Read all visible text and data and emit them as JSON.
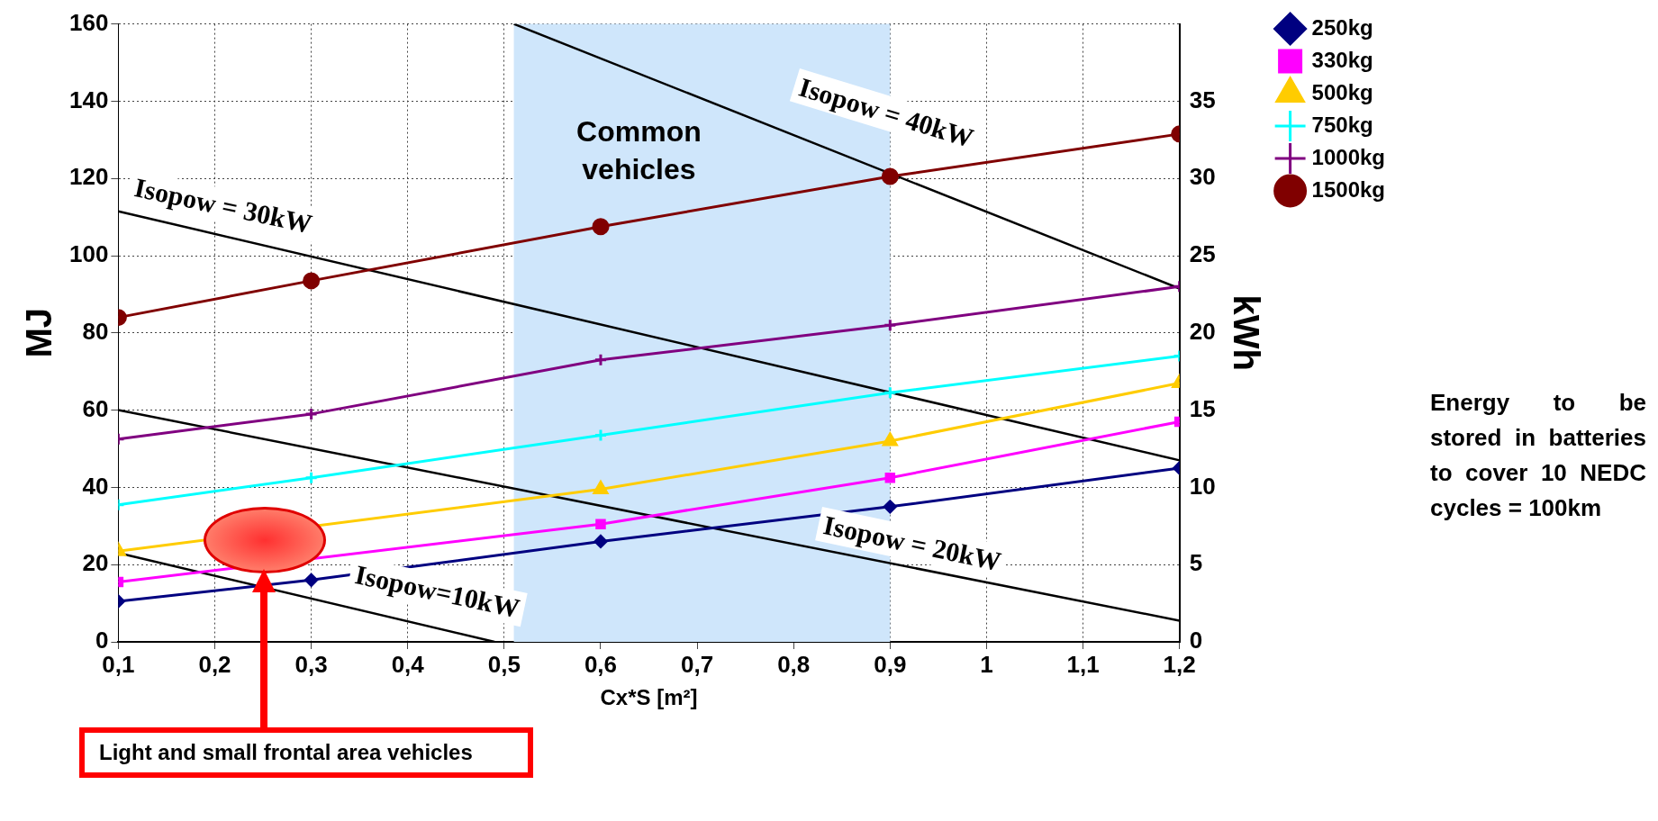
{
  "chart_data": {
    "type": "line",
    "xlabel": "Cx*S [m²]",
    "ylabel": "MJ",
    "y2label": "kWh",
    "xlim": [
      0.1,
      1.2
    ],
    "xticks": [
      {
        "value": 0.1,
        "label": "0,1"
      },
      {
        "value": 0.2,
        "label": "0,2"
      },
      {
        "value": 0.3,
        "label": "0,3"
      },
      {
        "value": 0.4,
        "label": "0,4"
      },
      {
        "value": 0.5,
        "label": "0,5"
      },
      {
        "value": 0.6,
        "label": "0,6"
      },
      {
        "value": 0.7,
        "label": "0,7"
      },
      {
        "value": 0.8,
        "label": "0,8"
      },
      {
        "value": 0.9,
        "label": "0,9"
      },
      1,
      {
        "value": 1.1,
        "label": "1,1"
      },
      {
        "value": 1.2,
        "label": "1,2"
      }
    ],
    "ylim": [
      0,
      160
    ],
    "yticks": [
      0,
      20,
      40,
      60,
      80,
      100,
      120,
      140,
      160
    ],
    "y2lim": [
      0,
      40
    ],
    "y2ticks": [
      0,
      5,
      10,
      15,
      20,
      25,
      30,
      35
    ],
    "x": [
      0.1,
      0.3,
      0.6,
      0.9,
      1.2
    ],
    "series": [
      {
        "name": "250kg",
        "color": "#000080",
        "marker": "diamond",
        "values": [
          10.5,
          16,
          26,
          35,
          45
        ]
      },
      {
        "name": "330kg",
        "color": "#ff00ff",
        "marker": "square",
        "values": [
          15.5,
          null,
          30.5,
          42.5,
          57
        ]
      },
      {
        "name": "500kg",
        "color": "#ffcc00",
        "marker": "triangle",
        "values": [
          23.5,
          null,
          39.5,
          52,
          67
        ]
      },
      {
        "name": "750kg",
        "color": "#00ffff",
        "marker": "cross",
        "values": [
          35.5,
          42.5,
          53.5,
          64.5,
          74
        ]
      },
      {
        "name": "1000kg",
        "color": "#800080",
        "marker": "cross",
        "values": [
          52.5,
          59,
          73,
          82,
          92
        ]
      },
      {
        "name": "1500kg",
        "color": "#800000",
        "marker": "circle",
        "values": [
          84,
          93.5,
          107.5,
          120.5,
          131.5
        ]
      },
      {
        "color": "#000000",
        "marker": "none",
        "x": [
          0.1,
          0.49
        ],
        "values": [
          23,
          0
        ]
      },
      {
        "color": "#000000",
        "marker": "none",
        "x": [
          0.1,
          1.2
        ],
        "values": [
          60,
          5.5
        ]
      },
      {
        "color": "#000000",
        "marker": "none",
        "x": [
          0.1,
          1.2
        ],
        "values": [
          111.5,
          47
        ]
      },
      {
        "color": "#000000",
        "marker": "none",
        "x": [
          0.51,
          1.2
        ],
        "values": [
          160,
          91.5
        ]
      }
    ],
    "bands": [
      {
        "axis": "x",
        "from": 0.51,
        "to": 0.9,
        "label": "Common vehicles",
        "color": "#cfe6fb"
      }
    ],
    "annotations": [
      "Isopow=10kW",
      "Isopow = 20kW",
      "Isopow = 30kW",
      "Isopow = 40kW",
      "Light and small frontal area vehicles",
      "Energy to be stored in batteries to cover 10 NEDC cycles = 100km"
    ],
    "grid": true,
    "legend": "right"
  }
}
